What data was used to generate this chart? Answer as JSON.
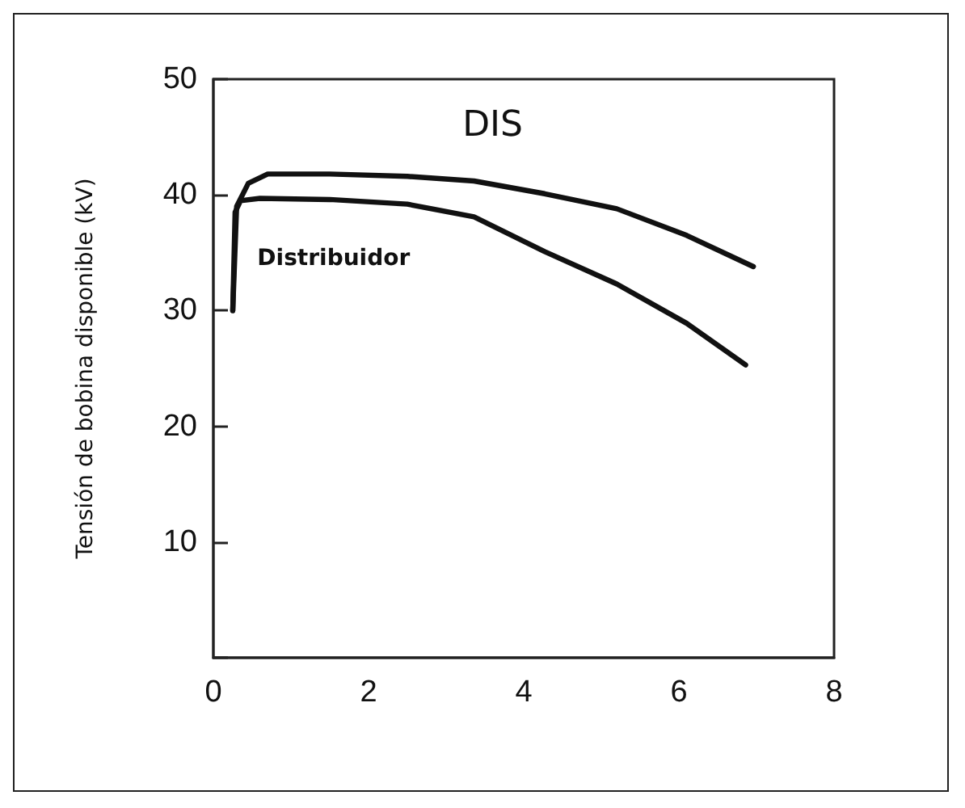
{
  "chart_data": {
    "type": "line",
    "ylabel": "Tensión de bobina disponible (kV)",
    "xlim": [
      0,
      8
    ],
    "xticks": [
      0,
      2,
      4,
      6,
      8
    ],
    "ylim": [
      0,
      50
    ],
    "yticks": [
      {
        "value": 0,
        "label": null
      },
      10,
      20,
      30,
      40,
      50
    ],
    "grid": false,
    "legend": false,
    "marker": "none",
    "line_style": "solid",
    "series": [
      {
        "name": "DIS",
        "color": "#111111",
        "x": [
          0.25,
          0.3,
          0.45,
          0.7,
          1.5,
          2.5,
          3.36,
          4.27,
          5.2,
          6.1,
          6.96
        ],
        "values": [
          30,
          39,
          41,
          41.8,
          41.8,
          41.6,
          41.2,
          40.1,
          38.8,
          36.5,
          33.8
        ]
      },
      {
        "name": "Distribuidor",
        "color": "#111111",
        "x": [
          0.25,
          0.28,
          0.35,
          0.6,
          1.5,
          2.5,
          3.36,
          4.27,
          5.2,
          6.1,
          6.86
        ],
        "values": [
          30,
          38.5,
          39.5,
          39.7,
          39.6,
          39.2,
          38.1,
          35.1,
          32.3,
          28.9,
          25.3
        ]
      }
    ]
  }
}
